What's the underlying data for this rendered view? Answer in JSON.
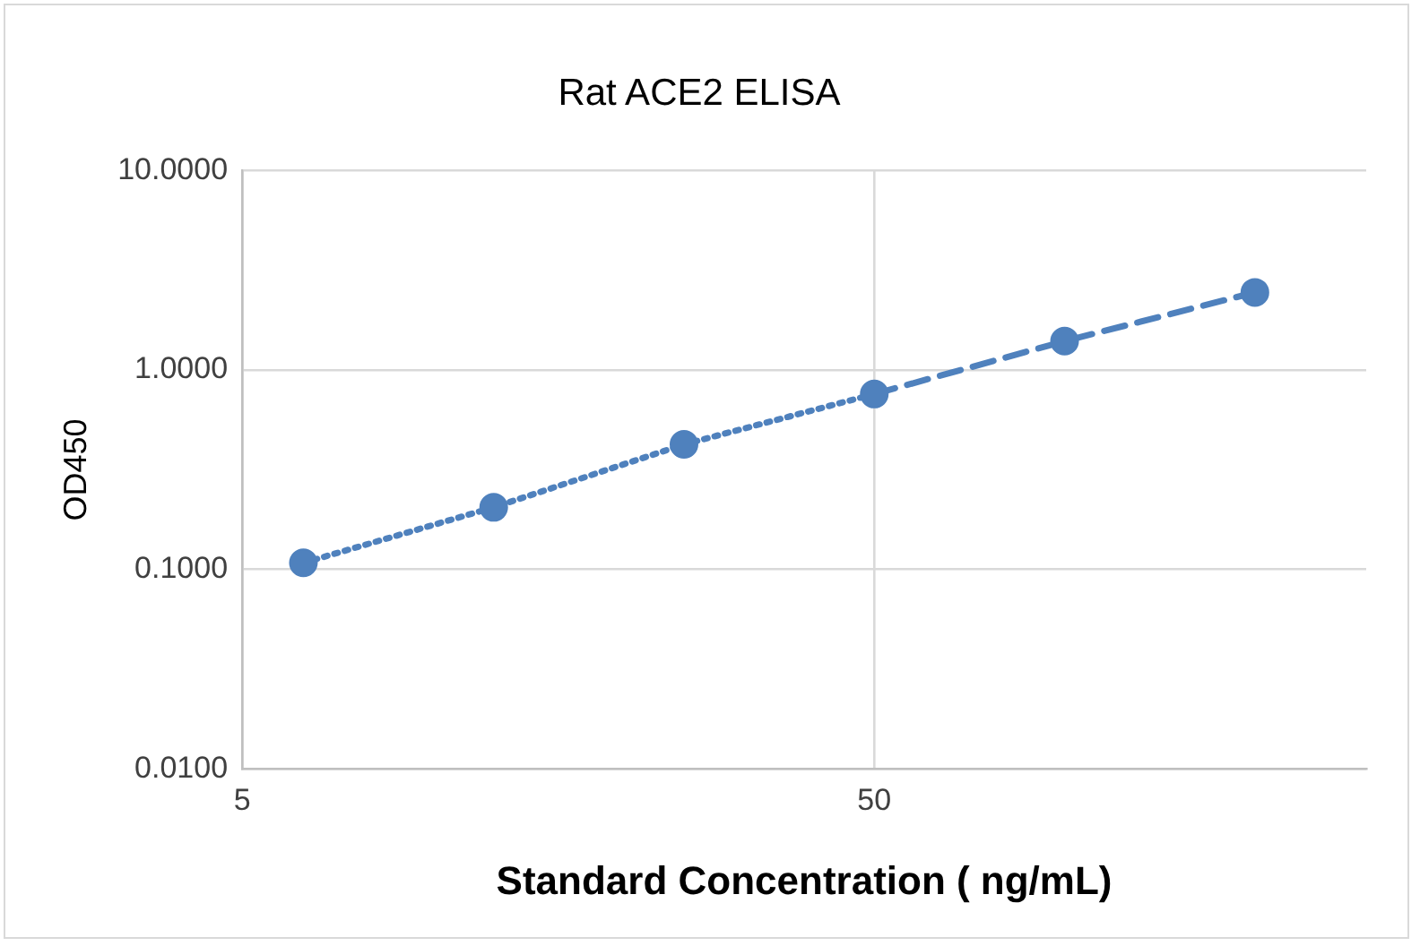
{
  "chart_data": {
    "type": "scatter",
    "title": "Rat ACE2 ELISA",
    "xlabel": "Standard Concentration ( ng/mL)",
    "ylabel": "OD450",
    "log": "xy",
    "grid": true,
    "legend": false,
    "marker": "circle",
    "xlim": [
      5,
      300
    ],
    "xticks": [
      5,
      50
    ],
    "ylim": [
      0.01,
      10
    ],
    "yticks": [
      {
        "value": 0.01,
        "label": "0.0100"
      },
      {
        "value": 0.1,
        "label": "0.1000"
      },
      {
        "value": 1,
        "label": "1.0000"
      },
      {
        "value": 10,
        "label": "10.0000"
      }
    ],
    "series": [
      {
        "type": "scatter",
        "color": "#4f81bd",
        "x": [
          6.25,
          12.5,
          25,
          50,
          100,
          200
        ],
        "values": [
          0.108,
          0.205,
          0.424,
          0.758,
          1.396,
          2.45
        ]
      },
      {
        "type": "line",
        "color": "#4f81bd",
        "line_style": "dotted",
        "marker": "none",
        "x": [
          6.25,
          12.5,
          25,
          50
        ],
        "values": [
          0.108,
          0.205,
          0.424,
          0.758
        ]
      },
      {
        "type": "line",
        "color": "#4f81bd",
        "line_style": "dashed",
        "marker": "none",
        "x": [
          50,
          100,
          200
        ],
        "values": [
          0.758,
          1.396,
          2.45
        ]
      }
    ]
  }
}
